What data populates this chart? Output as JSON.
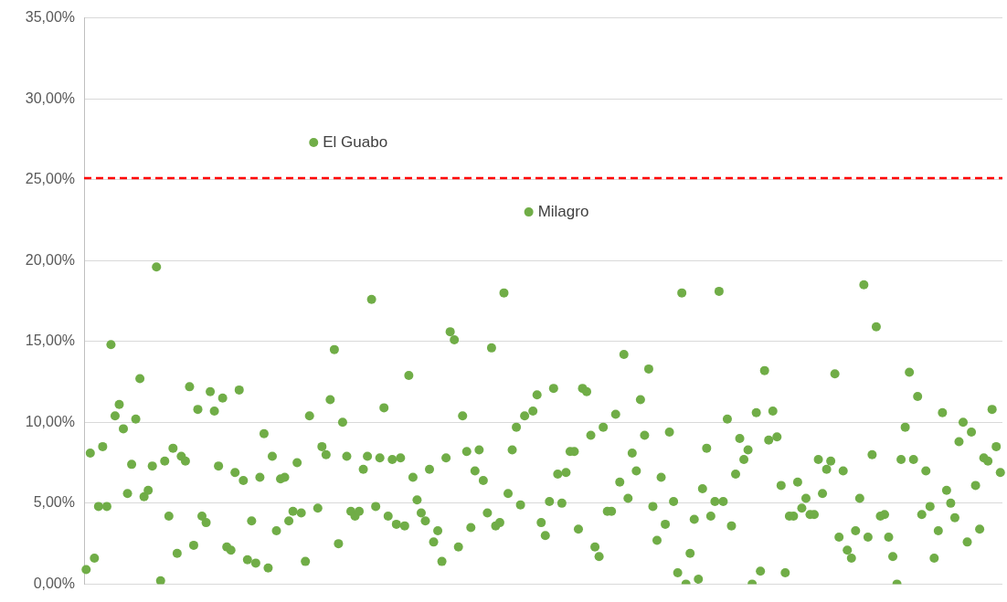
{
  "chart_data": {
    "type": "scatter",
    "categories": [
      null,
      null,
      null,
      null,
      null,
      null,
      null,
      null,
      null,
      null,
      null,
      null,
      null,
      null,
      null,
      null,
      null,
      null,
      null,
      null,
      null,
      null,
      null,
      null,
      null,
      null,
      null,
      null,
      null,
      null,
      null,
      null,
      null,
      null,
      null,
      null,
      null,
      null,
      null,
      null,
      null,
      null,
      null,
      null,
      null,
      null,
      null,
      null,
      null,
      null,
      null,
      null,
      null,
      null,
      null,
      null,
      null,
      null,
      null,
      null,
      null,
      null,
      null,
      null,
      null,
      null,
      null,
      null,
      null,
      null,
      null,
      null,
      null,
      null,
      null,
      null,
      null,
      null,
      null,
      null,
      null,
      null,
      null,
      null,
      null,
      null,
      null,
      null,
      null,
      null,
      null,
      null,
      null,
      null,
      null,
      null,
      null,
      null,
      null,
      null,
      null,
      null,
      null,
      null,
      null,
      null,
      null,
      null,
      null,
      null,
      null,
      null,
      null,
      null,
      null,
      null,
      null,
      null,
      null,
      null,
      null,
      null,
      null,
      null,
      null,
      null,
      null,
      null,
      null,
      null,
      null,
      null,
      null,
      null,
      null,
      null,
      null,
      null,
      null,
      null,
      null,
      null,
      null,
      null,
      null,
      null,
      null,
      null,
      null,
      null,
      null,
      null,
      null,
      null,
      null,
      null,
      null,
      null,
      null,
      null,
      null,
      null,
      null,
      null,
      null,
      null,
      null,
      null,
      null,
      null,
      null,
      null,
      null,
      null,
      null,
      null,
      null,
      null,
      null,
      null,
      null,
      null,
      null,
      null,
      null,
      null,
      null,
      null,
      null,
      null,
      null,
      null,
      null,
      null,
      null,
      null,
      null,
      null,
      null,
      null,
      null,
      null,
      null,
      null,
      null,
      null,
      null,
      null,
      null,
      null,
      null,
      null,
      null,
      null,
      null,
      null,
      null,
      null,
      null,
      null,
      null,
      null
    ],
    "series": [
      {
        "color": "#70ad47",
        "values": [
          0.9,
          8.1,
          1.6,
          4.8,
          8.5,
          4.8,
          14.8,
          10.4,
          11.1,
          9.6,
          5.6,
          7.4,
          10.2,
          12.7,
          5.4,
          5.8,
          7.3,
          19.6,
          0.2,
          7.6,
          4.2,
          8.4,
          1.9,
          7.9,
          7.6,
          12.2,
          2.4,
          10.8,
          4.2,
          3.8,
          11.9,
          10.7,
          7.3,
          11.5,
          2.3,
          2.1,
          6.9,
          12.0,
          6.4,
          1.5,
          3.9,
          1.3,
          6.6,
          9.3,
          1.0,
          7.9,
          3.3,
          6.5,
          6.6,
          3.9,
          4.5,
          7.5,
          4.4,
          1.4,
          10.4,
          27.3,
          4.7,
          8.5,
          8.0,
          11.4,
          14.5,
          2.5,
          10.0,
          7.9,
          4.5,
          4.2,
          4.5,
          7.1,
          7.9,
          17.6,
          4.8,
          7.8,
          10.9,
          4.2,
          7.7,
          3.7,
          7.8,
          3.6,
          12.9,
          6.6,
          5.2,
          4.4,
          3.9,
          7.1,
          2.6,
          3.3,
          1.4,
          7.8,
          15.6,
          15.1,
          2.3,
          10.4,
          8.2,
          3.5,
          7.0,
          8.3,
          6.4,
          4.4,
          14.6,
          3.6,
          3.8,
          18.0,
          5.6,
          8.3,
          9.7,
          4.9,
          10.4,
          23.0,
          10.7,
          11.7,
          3.8,
          3.0,
          5.1,
          12.1,
          6.8,
          5.0,
          6.9,
          8.2,
          8.2,
          3.4,
          12.1,
          11.9,
          9.2,
          2.3,
          1.7,
          9.7,
          4.5,
          4.5,
          10.5,
          6.3,
          14.2,
          5.3,
          8.1,
          7.0,
          11.4,
          9.2,
          13.3,
          4.8,
          2.7,
          6.6,
          3.7,
          9.4,
          5.1,
          0.7,
          18.0,
          0.0,
          1.9,
          4.0,
          0.3,
          5.9,
          8.4,
          4.2,
          5.1,
          18.1,
          5.1,
          10.2,
          3.6,
          6.8,
          9.0,
          7.7,
          8.3,
          0.0,
          10.6,
          0.8,
          13.2,
          8.9,
          10.7,
          9.1,
          6.1,
          0.7,
          4.2,
          4.2,
          6.3,
          4.7,
          5.3,
          4.3,
          4.3,
          7.7,
          5.6,
          7.1,
          7.6,
          13.0,
          2.9,
          7.0,
          2.1,
          1.6,
          3.3,
          5.3,
          18.5,
          2.9,
          8.0,
          15.9,
          4.2,
          4.3,
          2.9,
          1.7,
          0.0,
          7.7,
          9.7,
          13.1,
          7.7,
          11.6,
          4.3,
          7.0,
          4.8,
          1.6,
          3.3,
          10.6,
          5.8,
          5.0,
          4.1,
          8.8,
          10.0,
          2.6,
          9.4,
          6.1,
          3.4,
          7.8,
          7.6,
          10.8,
          8.5,
          6.9
        ]
      }
    ],
    "ylim": [
      0,
      35
    ],
    "yticks": [
      {
        "value": 0,
        "label": "0,00%"
      },
      {
        "value": 5,
        "label": "5,00%"
      },
      {
        "value": 10,
        "label": "10,00%"
      },
      {
        "value": 15,
        "label": "15,00%"
      },
      {
        "value": 20,
        "label": "20,00%"
      },
      {
        "value": 25,
        "label": "25,00%"
      },
      {
        "value": 30,
        "label": "30,00%"
      },
      {
        "value": 35,
        "label": "35,00%"
      }
    ],
    "grid": "y",
    "marker": "circle",
    "tick_labels": "y",
    "value_labels": [
      null,
      null,
      null,
      null,
      null,
      null,
      null,
      null,
      null,
      null,
      null,
      null,
      null,
      null,
      null,
      null,
      null,
      null,
      null,
      null,
      null,
      null,
      null,
      null,
      null,
      null,
      null,
      null,
      null,
      null,
      null,
      null,
      null,
      null,
      null,
      null,
      null,
      null,
      null,
      null,
      null,
      null,
      null,
      null,
      null,
      null,
      null,
      null,
      null,
      null,
      null,
      null,
      null,
      null,
      null,
      "El Guabo",
      null,
      null,
      null,
      null,
      null,
      null,
      null,
      null,
      null,
      null,
      null,
      null,
      null,
      null,
      null,
      null,
      null,
      null,
      null,
      null,
      null,
      null,
      null,
      null,
      null,
      null,
      null,
      null,
      null,
      null,
      null,
      null,
      null,
      null,
      null,
      null,
      null,
      null,
      null,
      null,
      null,
      null,
      null,
      null,
      null,
      null,
      null,
      null,
      null,
      null,
      null,
      "Milagro",
      null,
      null,
      null,
      null,
      null,
      null,
      null,
      null,
      null,
      null,
      null,
      null,
      null,
      null,
      null,
      null,
      null,
      null,
      null,
      null,
      null,
      null,
      null,
      null,
      null,
      null,
      null,
      null,
      null,
      null,
      null,
      null,
      null,
      null,
      null,
      null,
      null,
      null,
      null,
      null,
      null,
      null,
      null,
      null,
      null,
      null,
      null,
      null,
      null,
      null,
      null,
      null,
      null,
      null,
      null,
      null,
      null,
      null,
      null,
      null,
      null,
      null,
      null,
      null,
      null,
      null,
      null,
      null,
      null,
      null,
      null,
      null,
      null,
      null,
      null,
      null,
      null,
      null,
      null,
      null,
      null,
      null,
      null,
      null,
      null,
      null,
      null,
      null,
      null,
      null,
      null,
      null,
      null,
      null,
      null,
      null,
      null,
      null,
      null,
      null,
      null,
      null,
      null,
      null,
      null,
      null,
      null,
      null,
      null,
      null,
      null,
      null,
      null,
      null,
      null,
      null,
      null,
      null,
      null,
      null,
      null,
      null,
      null,
      null,
      null
    ],
    "ref_lines": [
      {
        "axis": "y",
        "value": 25.1,
        "color": "#ff0000",
        "line_style": "dashed"
      }
    ]
  }
}
